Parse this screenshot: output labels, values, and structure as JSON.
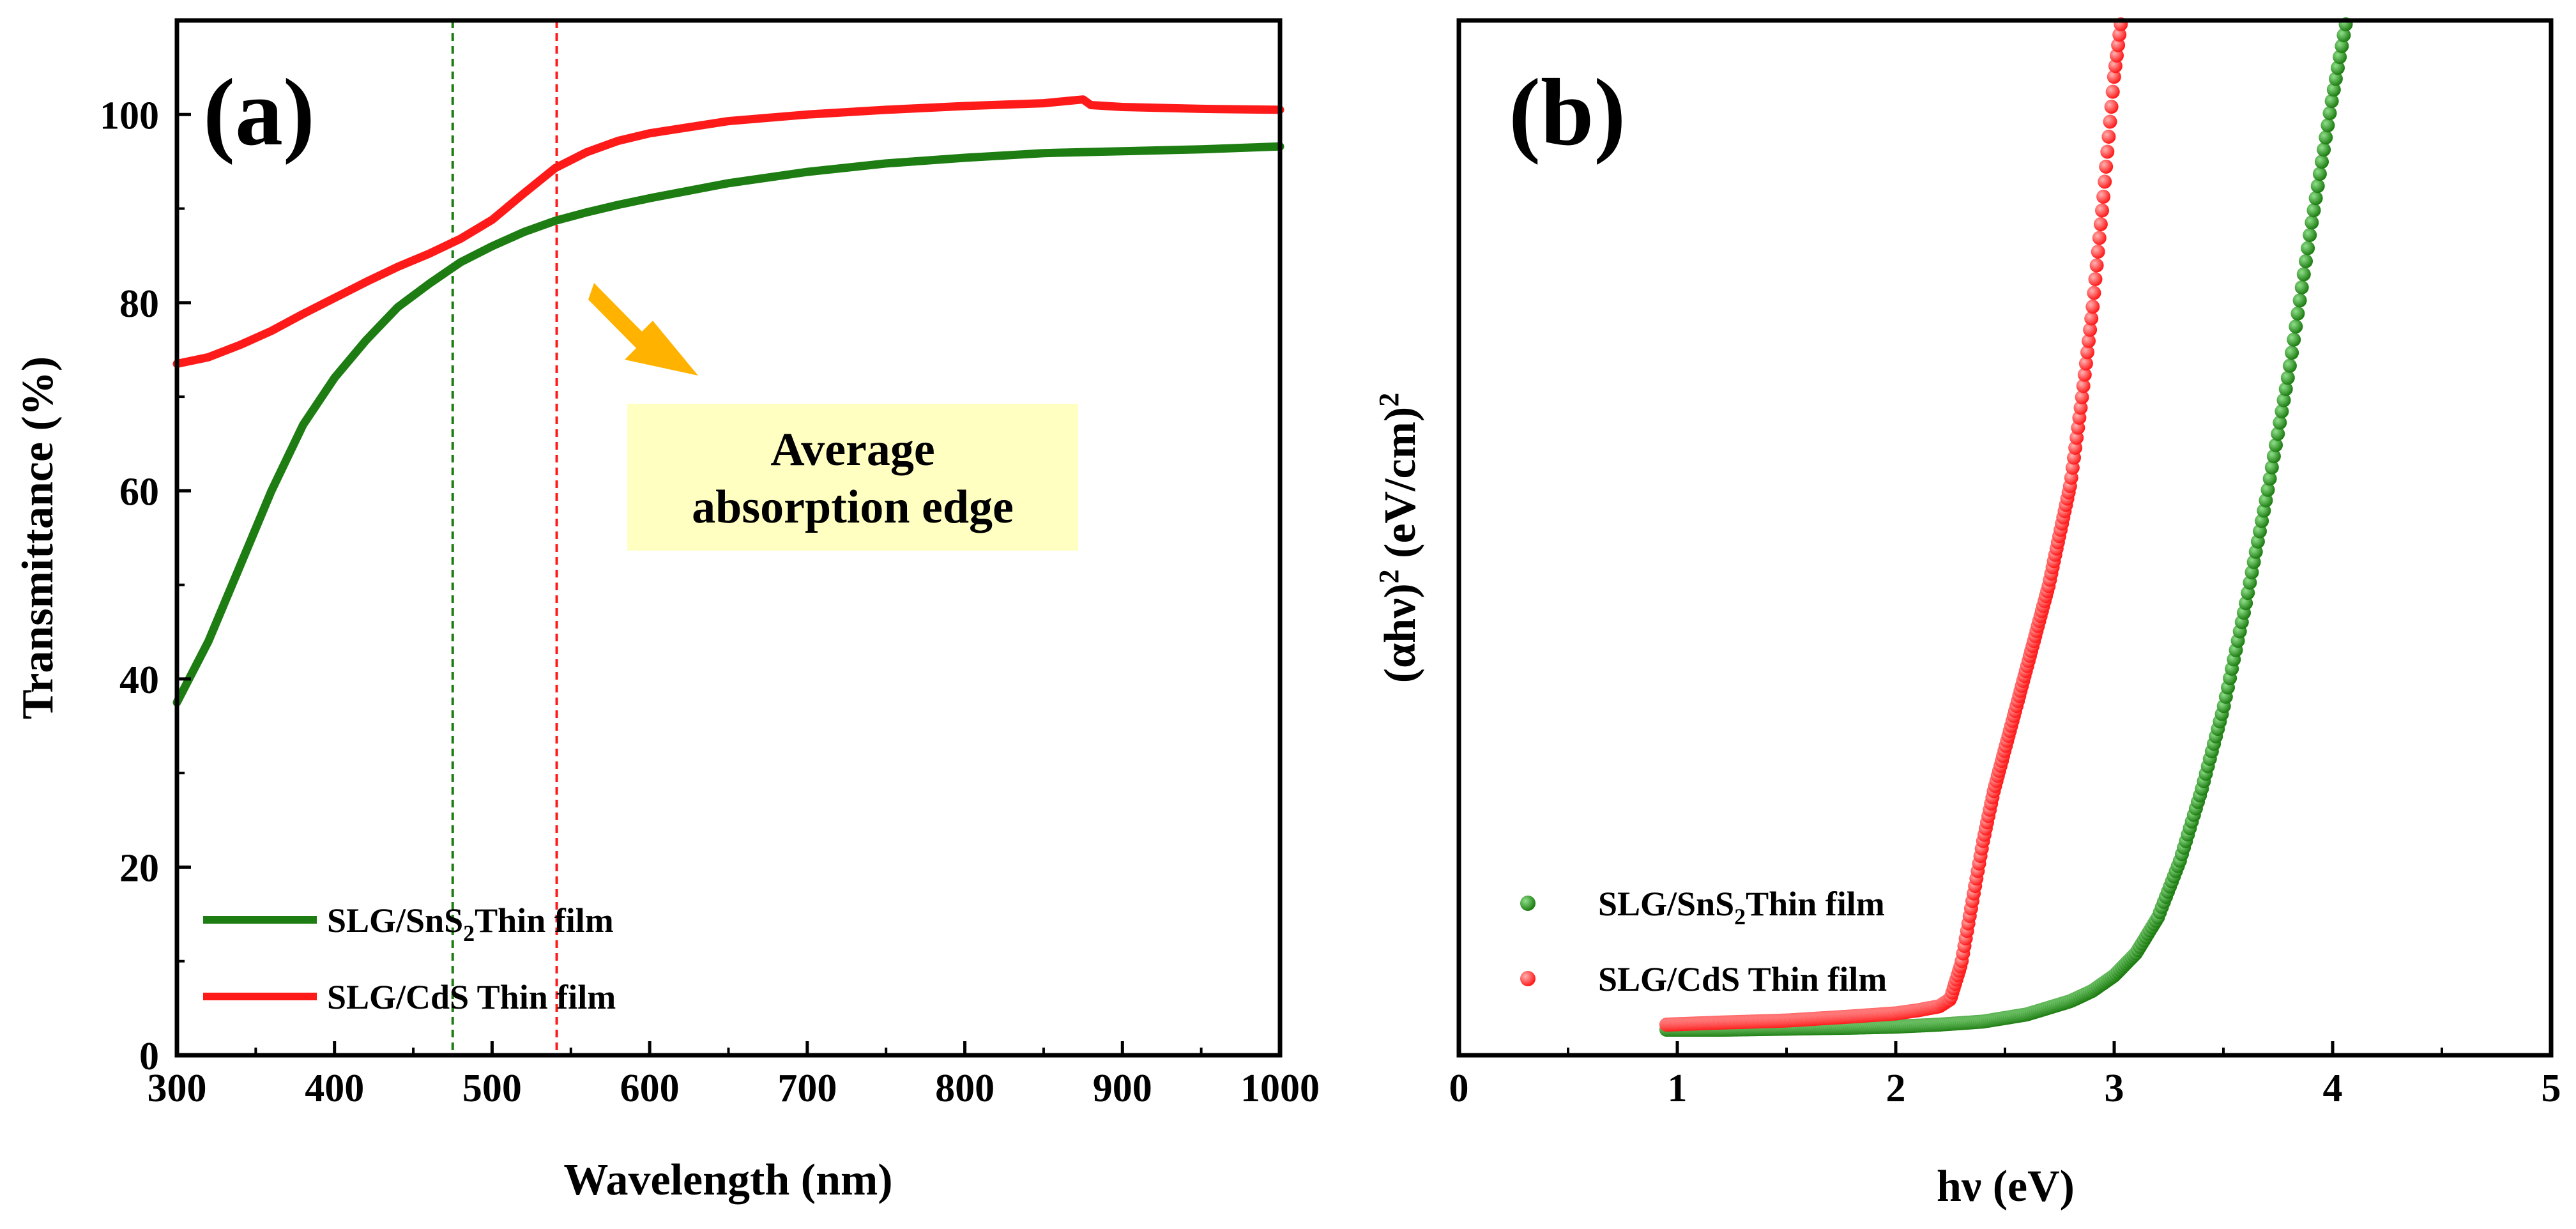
{
  "colors": {
    "green": "#1e7d12",
    "red": "#ff1a1a",
    "arrow": "#ffb300",
    "annot_bg": "#ffffc2",
    "axis": "#000000"
  },
  "chart_data": [
    {
      "panel": "(a)",
      "type": "line",
      "xlabel": "Wavelength (nm)",
      "ylabel": "Transmittance (%)",
      "xlim": [
        300,
        1000
      ],
      "ylim": [
        0,
        110
      ],
      "xticks": [
        300,
        400,
        500,
        600,
        700,
        800,
        900,
        1000
      ],
      "yticks": [
        0,
        20,
        40,
        60,
        80,
        100
      ],
      "series": [
        {
          "name": "SLG/SnS2 Thin film",
          "name_prefix": "SLG/SnS",
          "name_sub": "2",
          "name_suffix": "Thin film",
          "color": "#1e7d12",
          "x": [
            300,
            320,
            340,
            360,
            380,
            400,
            420,
            440,
            460,
            480,
            500,
            520,
            540,
            560,
            580,
            600,
            650,
            700,
            750,
            800,
            850,
            900,
            950,
            1000
          ],
          "y": [
            37.5,
            44,
            52,
            60,
            67,
            72,
            76,
            79.5,
            82,
            84.3,
            86,
            87.5,
            88.7,
            89.6,
            90.4,
            91.1,
            92.7,
            93.9,
            94.8,
            95.4,
            95.9,
            96.1,
            96.3,
            96.6
          ]
        },
        {
          "name": "SLG/CdS Thin film",
          "color": "#ff1a1a",
          "x": [
            300,
            320,
            340,
            360,
            380,
            400,
            420,
            440,
            460,
            480,
            500,
            520,
            540,
            560,
            580,
            600,
            650,
            700,
            750,
            800,
            850,
            875,
            880,
            900,
            950,
            1000
          ],
          "y": [
            73.5,
            74.2,
            75.5,
            77,
            78.8,
            80.5,
            82.2,
            83.8,
            85.2,
            86.8,
            88.8,
            91.6,
            94.3,
            96,
            97.2,
            98,
            99.3,
            100,
            100.5,
            100.9,
            101.2,
            101.6,
            101,
            100.8,
            100.6,
            100.5
          ]
        }
      ],
      "vlines": [
        {
          "x": 475,
          "color": "#1e7d12",
          "style": "dashed"
        },
        {
          "x": 541,
          "color": "#ff1a1a",
          "style": "dashed"
        }
      ],
      "annotation": {
        "line1": "Average",
        "line2": "absorption edge"
      },
      "legend": "bottom-left"
    },
    {
      "panel": "(b)",
      "type": "scatter",
      "xlabel": "hν (eV)",
      "ylabel": "(αhν)² (eV/cm)²",
      "xlim": [
        0,
        5
      ],
      "ylim": [
        0,
        100
      ],
      "xticks": [
        0,
        1,
        2,
        3,
        4,
        5
      ],
      "series": [
        {
          "name": "SLG/SnS2 Thin film",
          "name_prefix": "SLG/SnS",
          "name_sub": "2",
          "name_suffix": "Thin film",
          "color": "#1e7d12",
          "x": [
            0.95,
            1.2,
            1.5,
            1.8,
            2.0,
            2.2,
            2.4,
            2.6,
            2.8,
            2.9,
            3.0,
            3.1,
            3.2,
            3.3,
            3.4,
            3.5,
            3.6,
            3.7,
            3.8,
            3.9,
            4.0,
            4.06
          ],
          "y": [
            1.5,
            1.5,
            1.6,
            1.7,
            1.8,
            2.0,
            2.3,
            3.0,
            4.3,
            5.3,
            6.8,
            9.0,
            12.5,
            18,
            25,
            33,
            43,
            54,
            66,
            80,
            93,
            100
          ]
        },
        {
          "name": "SLG/CdS Thin film",
          "color": "#ff1a1a",
          "x": [
            0.95,
            1.2,
            1.5,
            1.8,
            2.0,
            2.1,
            2.2,
            2.25,
            2.3,
            2.35,
            2.4,
            2.45,
            2.5,
            2.55,
            2.6,
            2.7,
            2.8,
            2.85,
            2.9,
            2.95,
            3.0,
            3.03
          ],
          "y": [
            2.0,
            2.2,
            2.4,
            2.8,
            3.1,
            3.4,
            3.8,
            4.5,
            8,
            14,
            20,
            25,
            29,
            33,
            37,
            45,
            55,
            63,
            72,
            83,
            95,
            100
          ]
        }
      ],
      "legend": "bottom-left"
    }
  ]
}
